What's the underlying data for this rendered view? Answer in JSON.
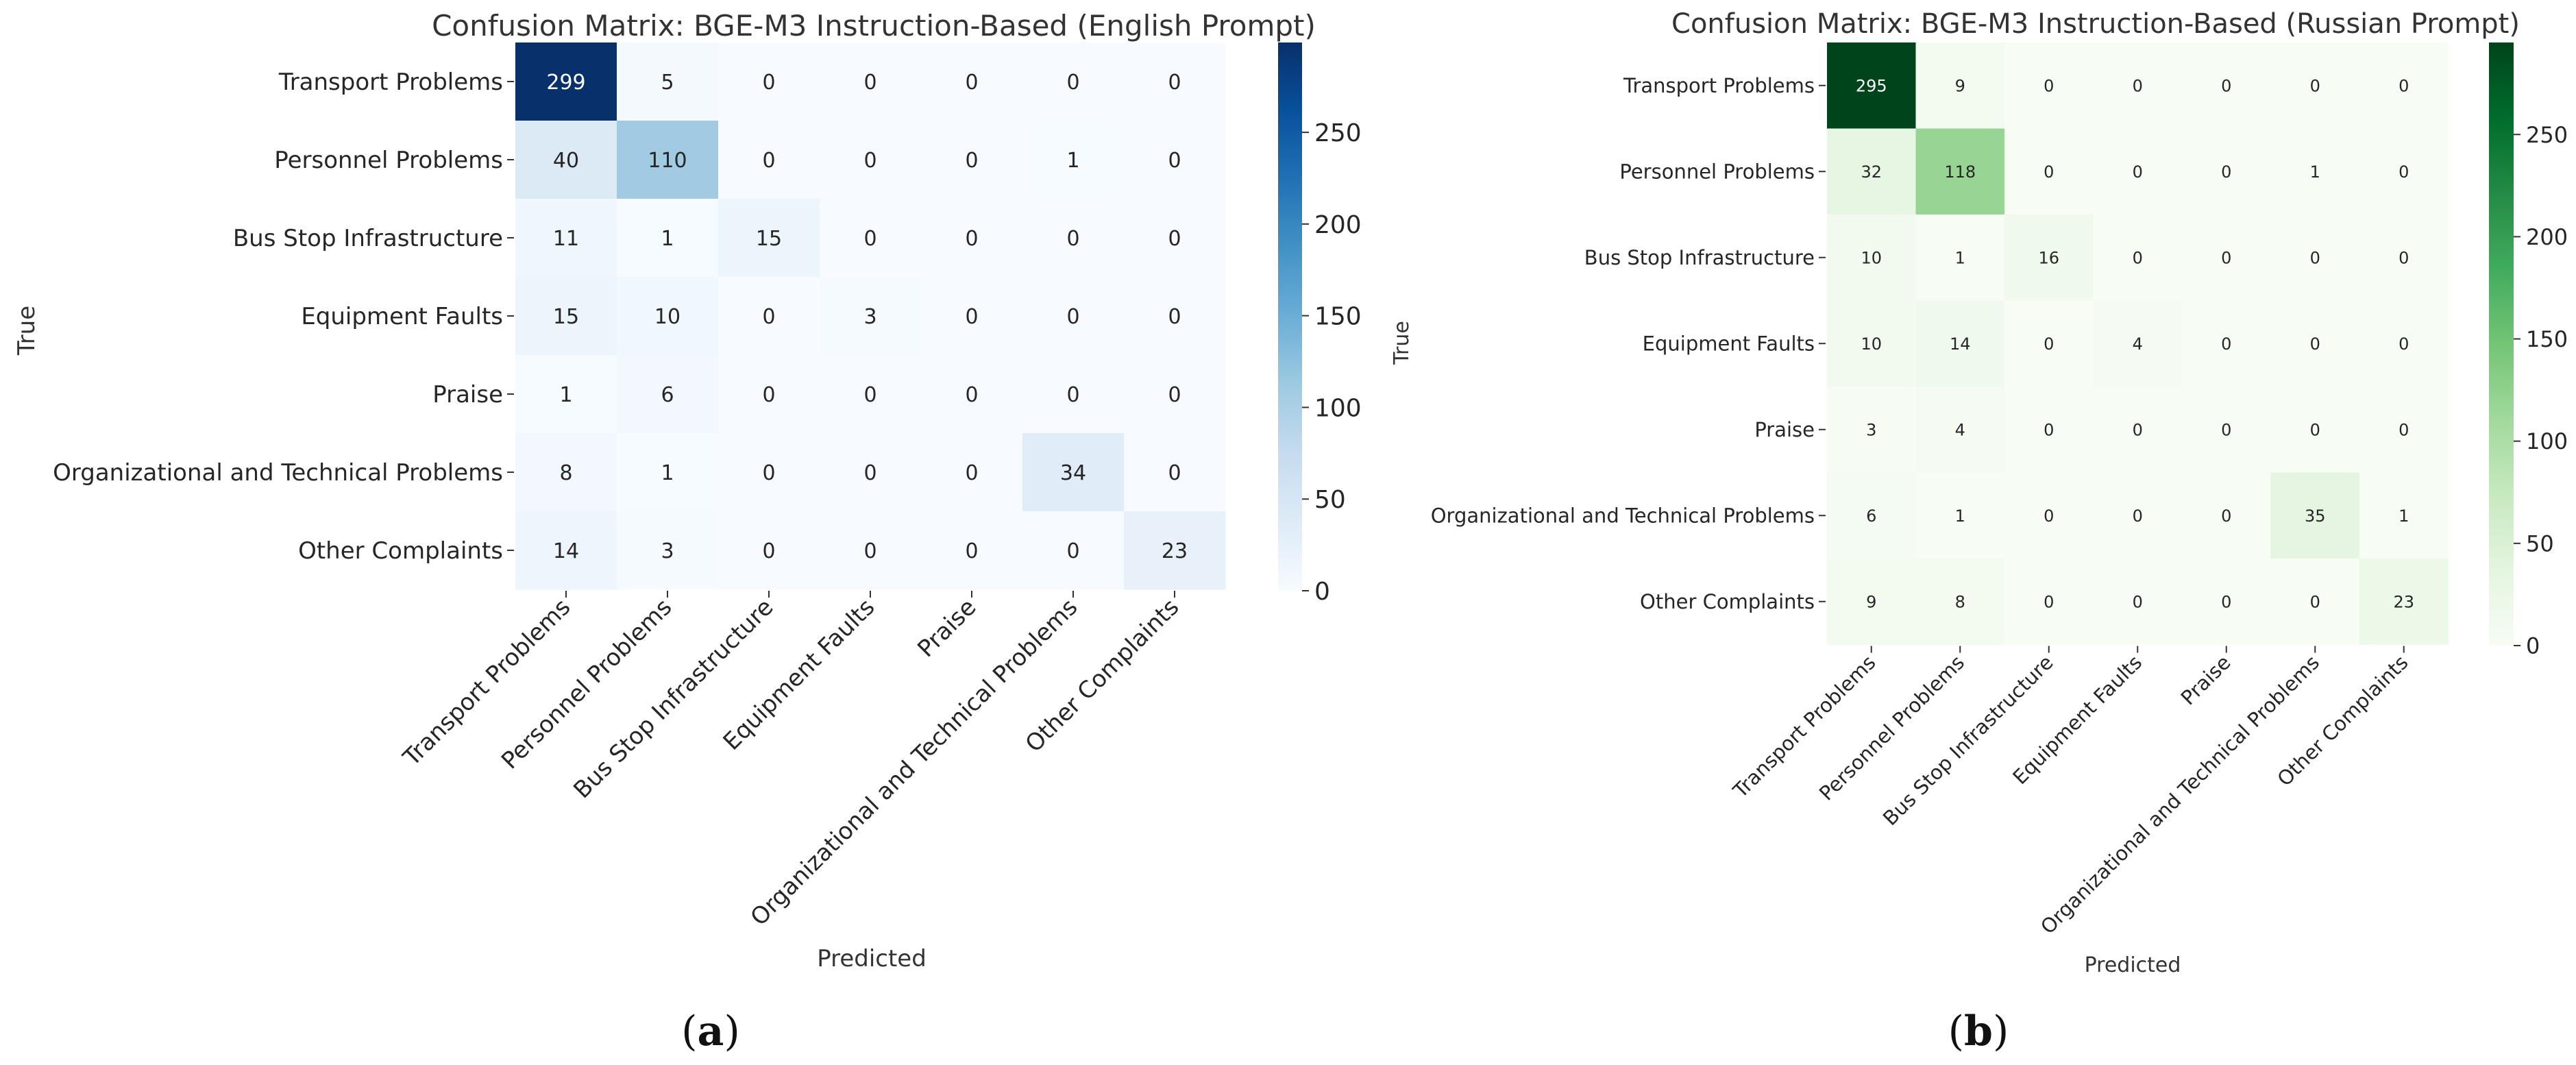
{
  "chart_data": [
    {
      "type": "heatmap",
      "title": "Confusion Matrix: BGE-M3 Instruction-Based (English Prompt)",
      "xlabel": "Predicted",
      "ylabel": "True",
      "panel_label_open": "(",
      "panel_label_letter": "a",
      "panel_label_close": ")",
      "categories": [
        "Transport Problems",
        "Personnel Problems",
        "Bus Stop Infrastructure",
        "Equipment Faults",
        "Praise",
        "Organizational and Technical Problems",
        "Other Complaints"
      ],
      "matrix": [
        [
          299,
          5,
          0,
          0,
          0,
          0,
          0
        ],
        [
          40,
          110,
          0,
          0,
          0,
          1,
          0
        ],
        [
          11,
          1,
          15,
          0,
          0,
          0,
          0
        ],
        [
          15,
          10,
          0,
          3,
          0,
          0,
          0
        ],
        [
          1,
          6,
          0,
          0,
          0,
          0,
          0
        ],
        [
          8,
          1,
          0,
          0,
          0,
          34,
          0
        ],
        [
          14,
          3,
          0,
          0,
          0,
          0,
          23
        ]
      ],
      "colormap": "Blues",
      "color_low": "#f7fbff",
      "color_high": "#08306b",
      "colorbar_range": [
        0,
        299
      ],
      "colorbar_ticks": [
        0,
        50,
        100,
        150,
        200,
        250
      ]
    },
    {
      "type": "heatmap",
      "title": "Confusion Matrix: BGE-M3 Instruction-Based (Russian Prompt)",
      "xlabel": "Predicted",
      "ylabel": "True",
      "panel_label_open": "(",
      "panel_label_letter": "b",
      "panel_label_close": ")",
      "categories": [
        "Transport Problems",
        "Personnel Problems",
        "Bus Stop Infrastructure",
        "Equipment Faults",
        "Praise",
        "Organizational and Technical Problems",
        "Other Complaints"
      ],
      "matrix": [
        [
          295,
          9,
          0,
          0,
          0,
          0,
          0
        ],
        [
          32,
          118,
          0,
          0,
          0,
          1,
          0
        ],
        [
          10,
          1,
          16,
          0,
          0,
          0,
          0
        ],
        [
          10,
          14,
          0,
          4,
          0,
          0,
          0
        ],
        [
          3,
          4,
          0,
          0,
          0,
          0,
          0
        ],
        [
          6,
          1,
          0,
          0,
          0,
          35,
          1
        ],
        [
          9,
          8,
          0,
          0,
          0,
          0,
          23
        ]
      ],
      "colormap": "Greens",
      "color_low": "#f7fcf5",
      "color_high": "#00441b",
      "colorbar_range": [
        0,
        295
      ],
      "colorbar_ticks": [
        0,
        50,
        100,
        150,
        200,
        250
      ]
    }
  ]
}
